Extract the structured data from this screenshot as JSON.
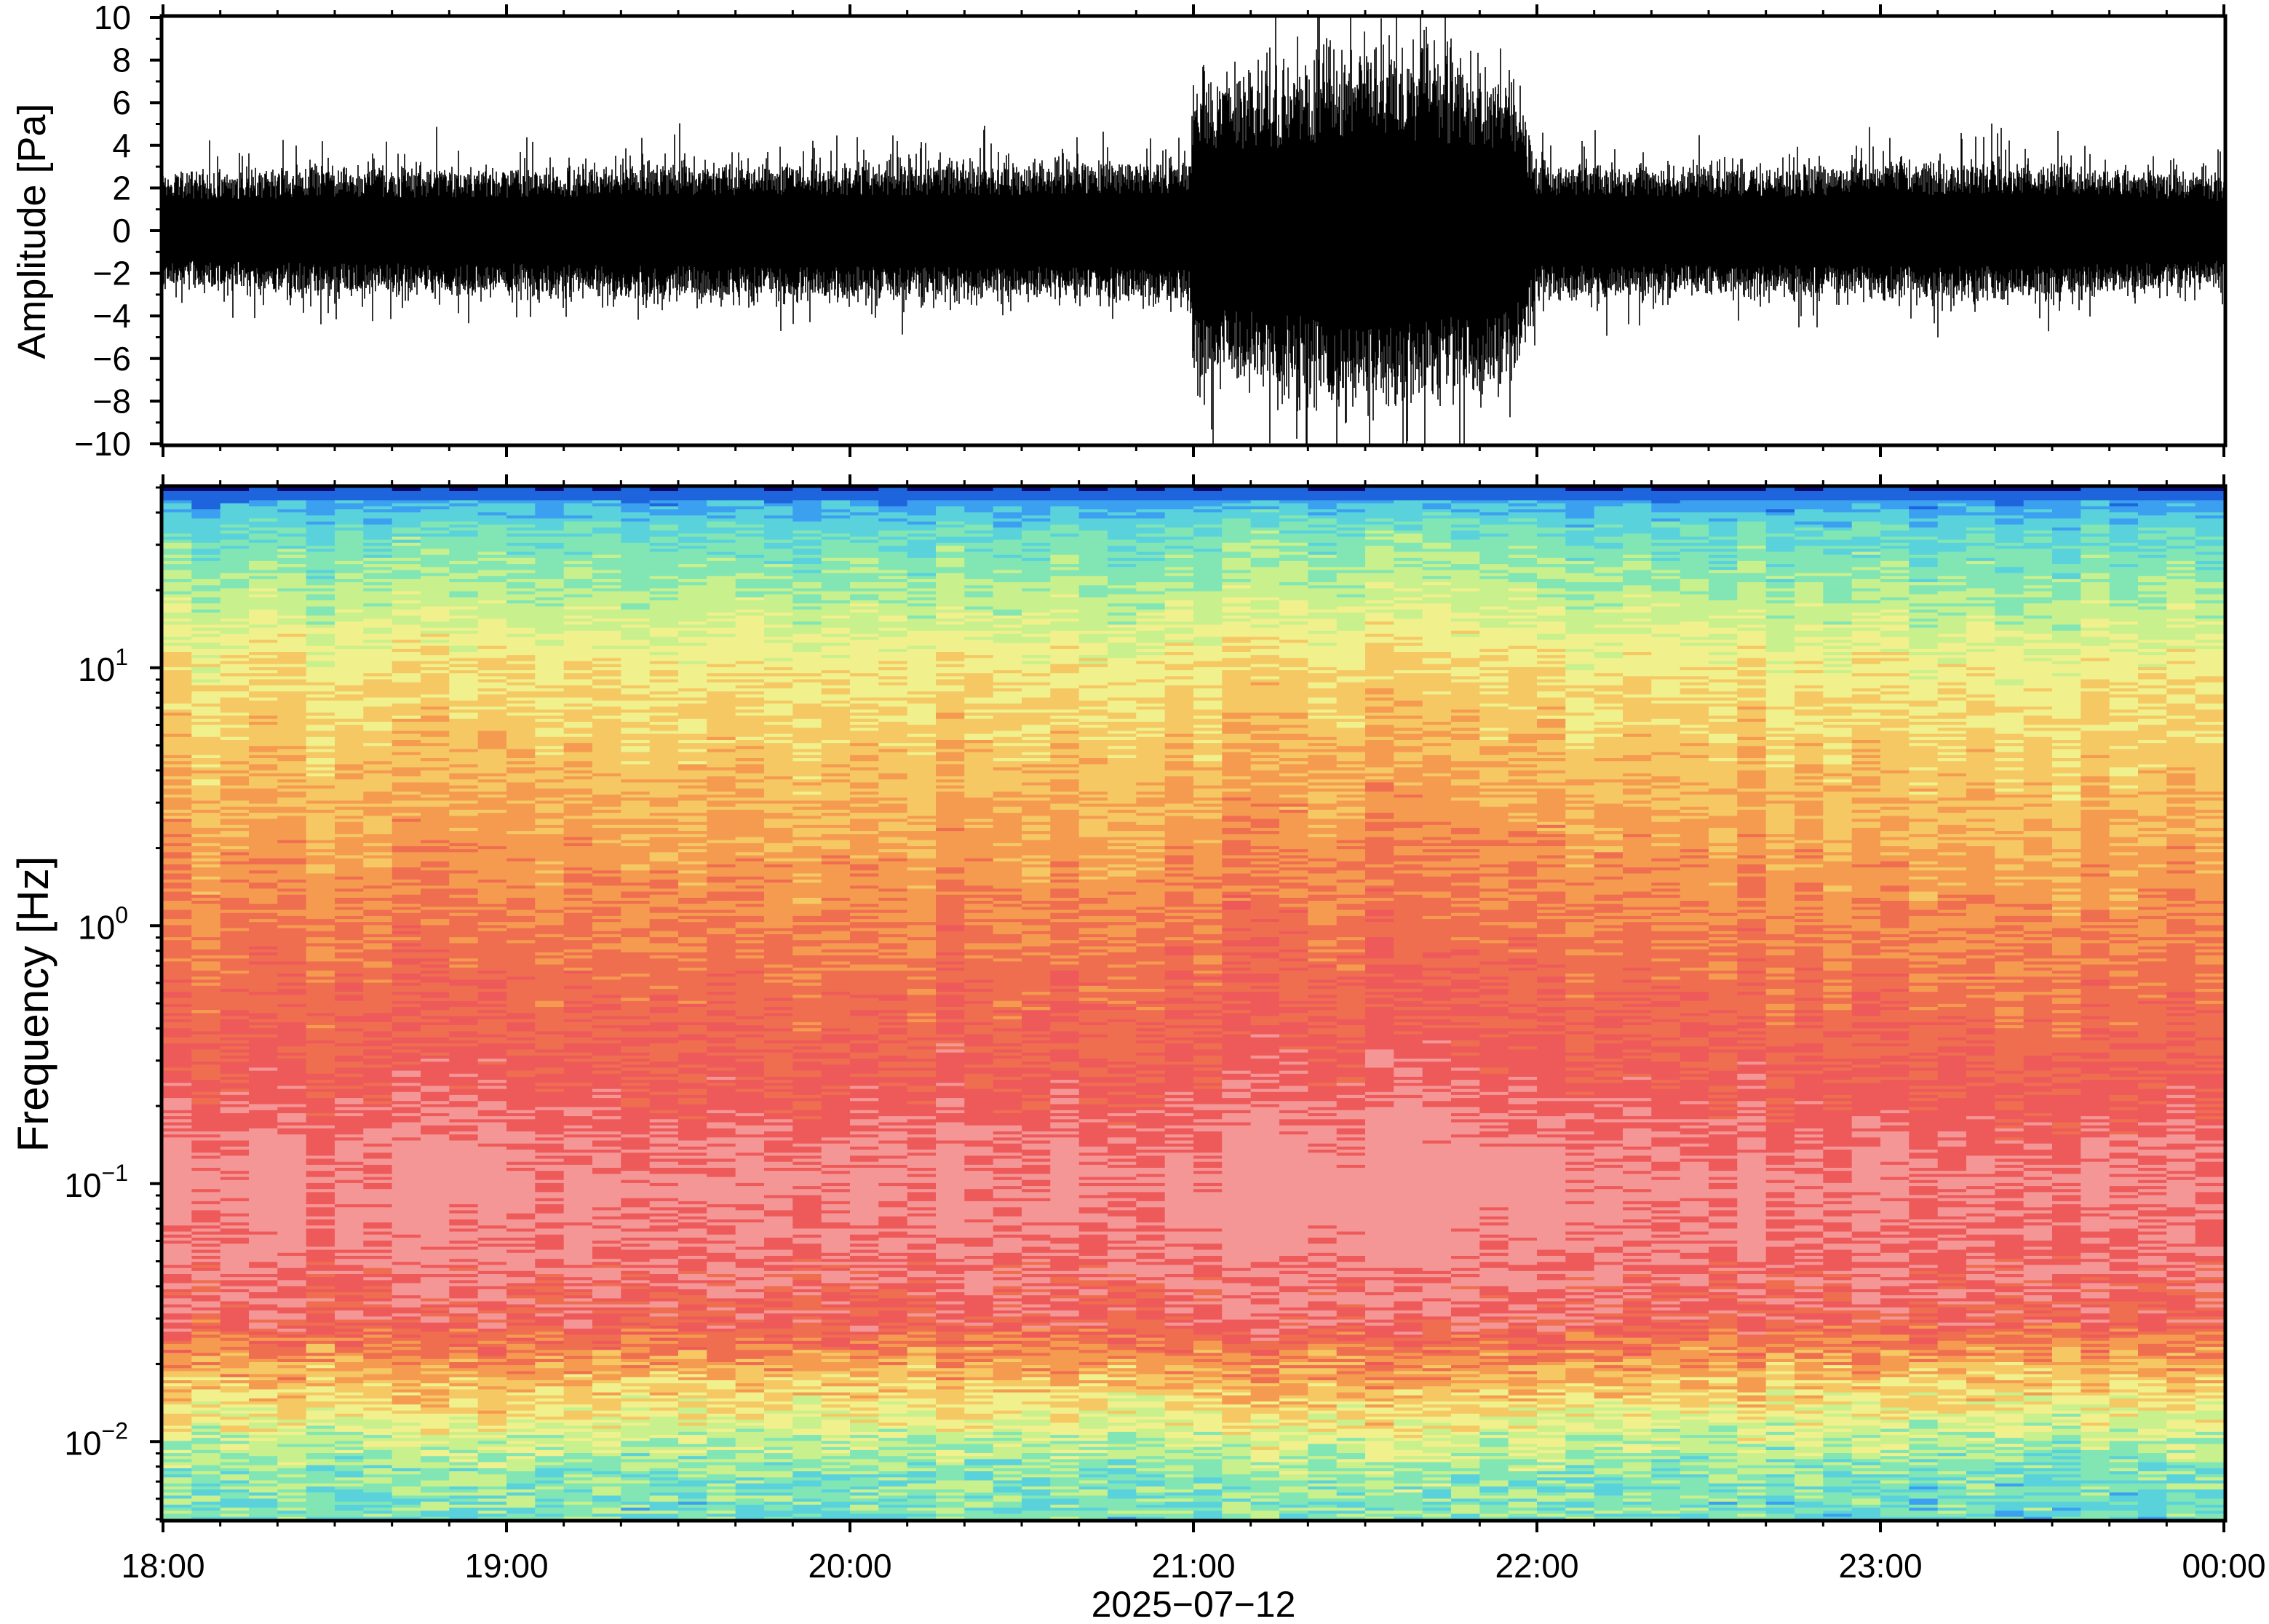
{
  "figure": {
    "date_label": "2025−07−12"
  },
  "chart_data": [
    {
      "type": "line",
      "ylabel": "Amplitude [Pa]",
      "ylim": [
        -10,
        10
      ],
      "yticks": [
        10,
        8,
        6,
        4,
        2,
        0,
        -2,
        -4,
        -6,
        -8,
        -10
      ],
      "ytick_labels": [
        "10",
        "8",
        "6",
        "4",
        "2",
        "0",
        "−2",
        "−4",
        "−6",
        "−8",
        "−10"
      ],
      "xlim": [
        0,
        6
      ],
      "x_unit": "hours after 18:00",
      "envelope": {
        "time_h": [
          0,
          0.5,
          1.0,
          1.5,
          2.0,
          2.5,
          2.99,
          3.0,
          3.1,
          3.5,
          3.9,
          3.95,
          4.0,
          4.5,
          5.0,
          5.5,
          6.0
        ],
        "upper_pa": [
          2.5,
          2.8,
          2.8,
          3.0,
          3.0,
          3.0,
          3.2,
          7.5,
          6.5,
          8.0,
          7.0,
          6.0,
          3.0,
          2.8,
          3.0,
          3.0,
          2.5
        ],
        "lower_pa": [
          -2.5,
          -2.8,
          -2.8,
          -3.0,
          -3.0,
          -3.0,
          -3.2,
          -7.5,
          -6.5,
          -8.0,
          -7.0,
          -6.0,
          -3.0,
          -2.8,
          -3.0,
          -3.0,
          -2.5
        ]
      }
    },
    {
      "type": "heatmap",
      "ylabel": "Frequency [Hz]",
      "yscale": "log",
      "ylim": [
        0.005,
        50
      ],
      "yticks": [
        0.01,
        0.1,
        1,
        10
      ],
      "ytick_labels": [
        {
          "base": "10",
          "exp": "−2"
        },
        {
          "base": "10",
          "exp": "−1"
        },
        {
          "base": "10",
          "exp": "0"
        },
        {
          "base": "10",
          "exp": "1"
        }
      ],
      "xlim": [
        0,
        6
      ],
      "xtick_labels": [
        "18:00",
        "19:00",
        "20:00",
        "21:00",
        "22:00",
        "23:00",
        "00:00"
      ],
      "colormap": "rainbow",
      "colors": [
        "#0a0a6e",
        "#1e64dc",
        "#3ca0f0",
        "#5ad2dc",
        "#82e6b4",
        "#c8f08c",
        "#f0f08c",
        "#f5c864",
        "#f59b50",
        "#f06e50",
        "#ee5a5a",
        "#f59696"
      ],
      "band_profile": {
        "freq_hz": [
          0.005,
          0.008,
          0.012,
          0.02,
          0.03,
          0.05,
          0.1,
          0.3,
          1,
          3,
          10,
          20,
          35,
          48,
          50
        ],
        "level": [
          0.35,
          0.4,
          0.55,
          0.75,
          0.95,
          1.0,
          1.05,
          0.92,
          0.82,
          0.72,
          0.6,
          0.45,
          0.32,
          0.15,
          0.0
        ]
      }
    }
  ]
}
